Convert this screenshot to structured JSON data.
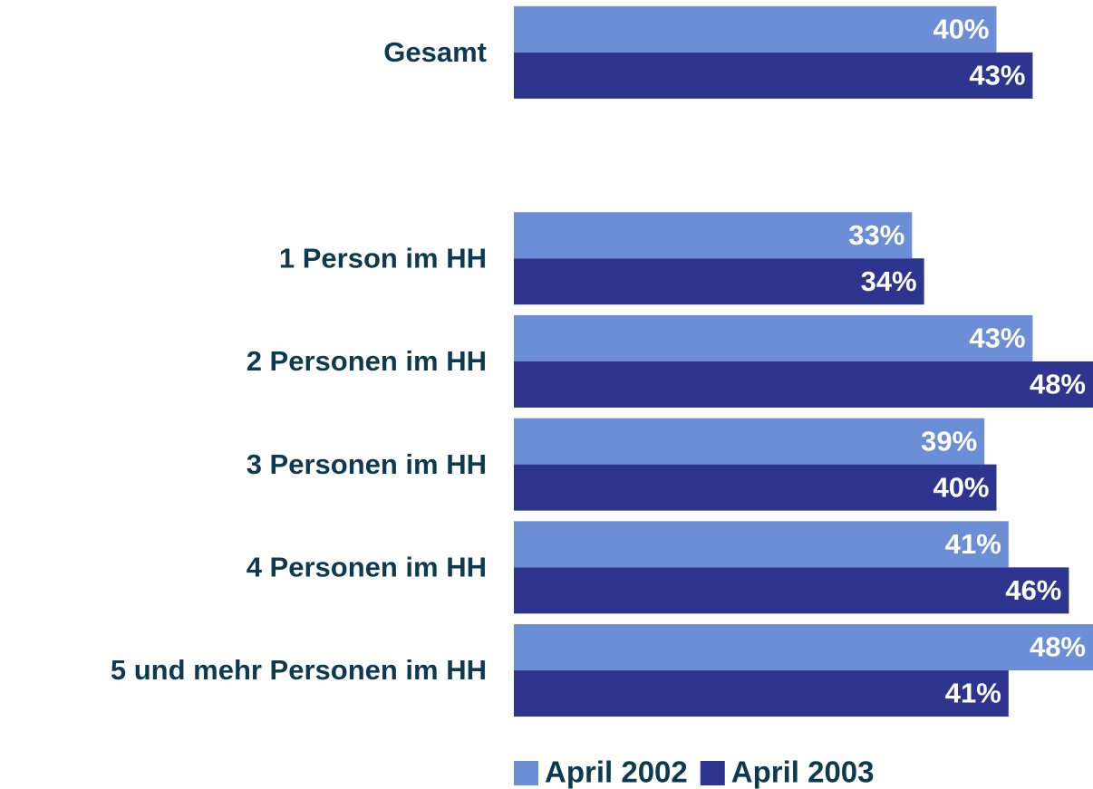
{
  "chart_data": {
    "type": "hbar",
    "categories": [
      "Gesamt",
      null,
      "1 Person im HH",
      "2 Personen im HH",
      "3 Personen im HH",
      "4 Personen im HH",
      "5 und mehr Personen im HH"
    ],
    "series": [
      {
        "name": "April 2002",
        "color": "#6b8ed6",
        "values": [
          40,
          null,
          33,
          43,
          39,
          41,
          48
        ],
        "value_labels": [
          "40%",
          null,
          "33%",
          "43%",
          "39%",
          "41%",
          "48%"
        ]
      },
      {
        "name": "April 2003",
        "color": "#2e358f",
        "values": [
          43,
          null,
          34,
          48,
          40,
          46,
          41
        ],
        "value_labels": [
          "43%",
          null,
          "34%",
          "48%",
          "40%",
          "46%",
          "41%"
        ]
      }
    ],
    "xlim": [
      0,
      48
    ],
    "legend": "bottom"
  }
}
